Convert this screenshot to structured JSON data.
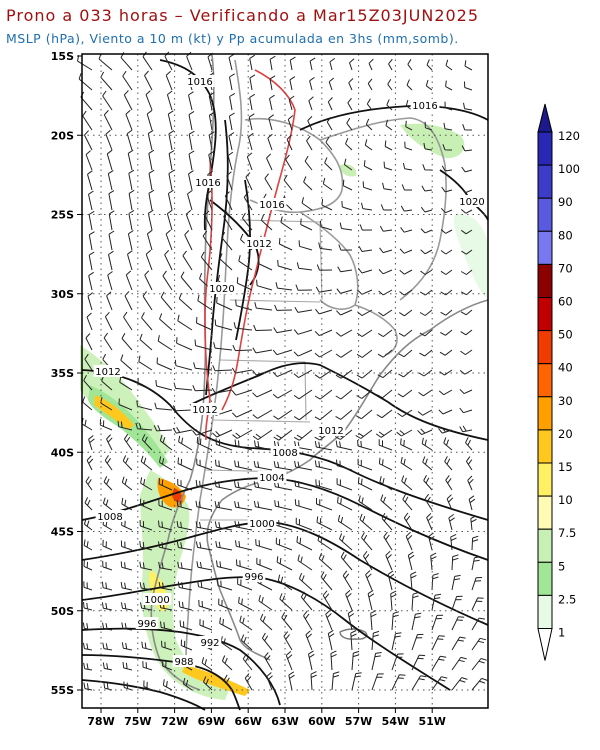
{
  "title": "Prono a 033 horas – Verificando a Mar15Z03JUN2025",
  "subtitle": "MSLP (hPa), Viento a 10 m (kt) y Pp acumulada en 3hs (mm,somb).",
  "map": {
    "lat_labels": [
      "15S",
      "20S",
      "25S",
      "30S",
      "35S",
      "40S",
      "45S",
      "50S",
      "55S"
    ],
    "lon_labels": [
      "78W",
      "75W",
      "72W",
      "69W",
      "66W",
      "63W",
      "60W",
      "57W",
      "54W",
      "51W"
    ],
    "isobar_labels": [
      {
        "text": "1016"
      },
      {
        "text": "1016"
      },
      {
        "text": "1016"
      },
      {
        "text": "1016"
      },
      {
        "text": "1020"
      },
      {
        "text": "1012"
      },
      {
        "text": "1020"
      },
      {
        "text": "1012"
      },
      {
        "text": "1012"
      },
      {
        "text": "1012"
      },
      {
        "text": "1008"
      },
      {
        "text": "1004"
      },
      {
        "text": "1008"
      },
      {
        "text": "1000"
      },
      {
        "text": "996"
      },
      {
        "text": "1000"
      },
      {
        "text": "996"
      },
      {
        "text": "992"
      },
      {
        "text": "988"
      }
    ]
  },
  "colorbar": {
    "labels": [
      "120",
      "100",
      "90",
      "80",
      "70",
      "60",
      "50",
      "40",
      "30",
      "20",
      "15",
      "10",
      "7.5",
      "5",
      "2.5",
      "1"
    ],
    "colors": [
      "#1a1a8c",
      "#2828b4",
      "#3c3cc8",
      "#5a5ae0",
      "#7878f0",
      "#8c0000",
      "#c00000",
      "#f03c00",
      "#ff6400",
      "#ffa000",
      "#ffc81e",
      "#fff064",
      "#fffab4",
      "#c8f0b4",
      "#a0e696",
      "#e6fae6",
      "#ffffff"
    ]
  }
}
